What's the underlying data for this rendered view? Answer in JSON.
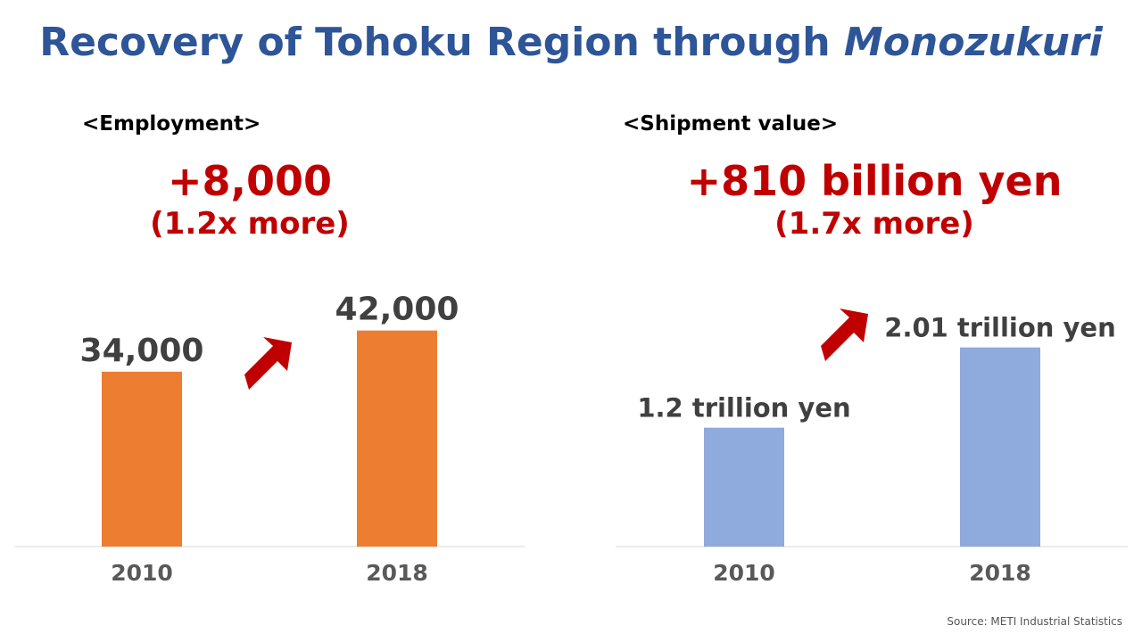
{
  "title_main": "Recovery of Tohoku Region through",
  "title_italic": "Monozukuri",
  "source": "Source: METI Industrial Statistics",
  "colors": {
    "title": "#2E5597",
    "highlight": "#C00000",
    "employment_bar": "#ED7D31",
    "shipment_bar": "#8FAADC",
    "arrow": "#C00000"
  },
  "employment": {
    "label": "<Employment>",
    "change": "+8,000",
    "ratio": "(1.2x more)"
  },
  "shipment": {
    "label": "<Shipment value>",
    "change": "+810 billion yen",
    "ratio": "(1.7x more)"
  },
  "chart_data": [
    {
      "type": "bar",
      "categories": [
        "2010",
        "2018"
      ],
      "values": [
        34000,
        42000
      ],
      "data_labels": [
        "34,000",
        "42,000"
      ],
      "title": "<Employment>",
      "ylim": [
        0,
        52000
      ],
      "grid": false
    },
    {
      "type": "bar",
      "categories": [
        "2010",
        "2018"
      ],
      "values": [
        1.2,
        2.01
      ],
      "data_labels": [
        "1.2 trillion yen",
        "2.01 trillion yen"
      ],
      "title": "<Shipment value>",
      "ylim": [
        0,
        2.7
      ],
      "grid": false
    }
  ]
}
